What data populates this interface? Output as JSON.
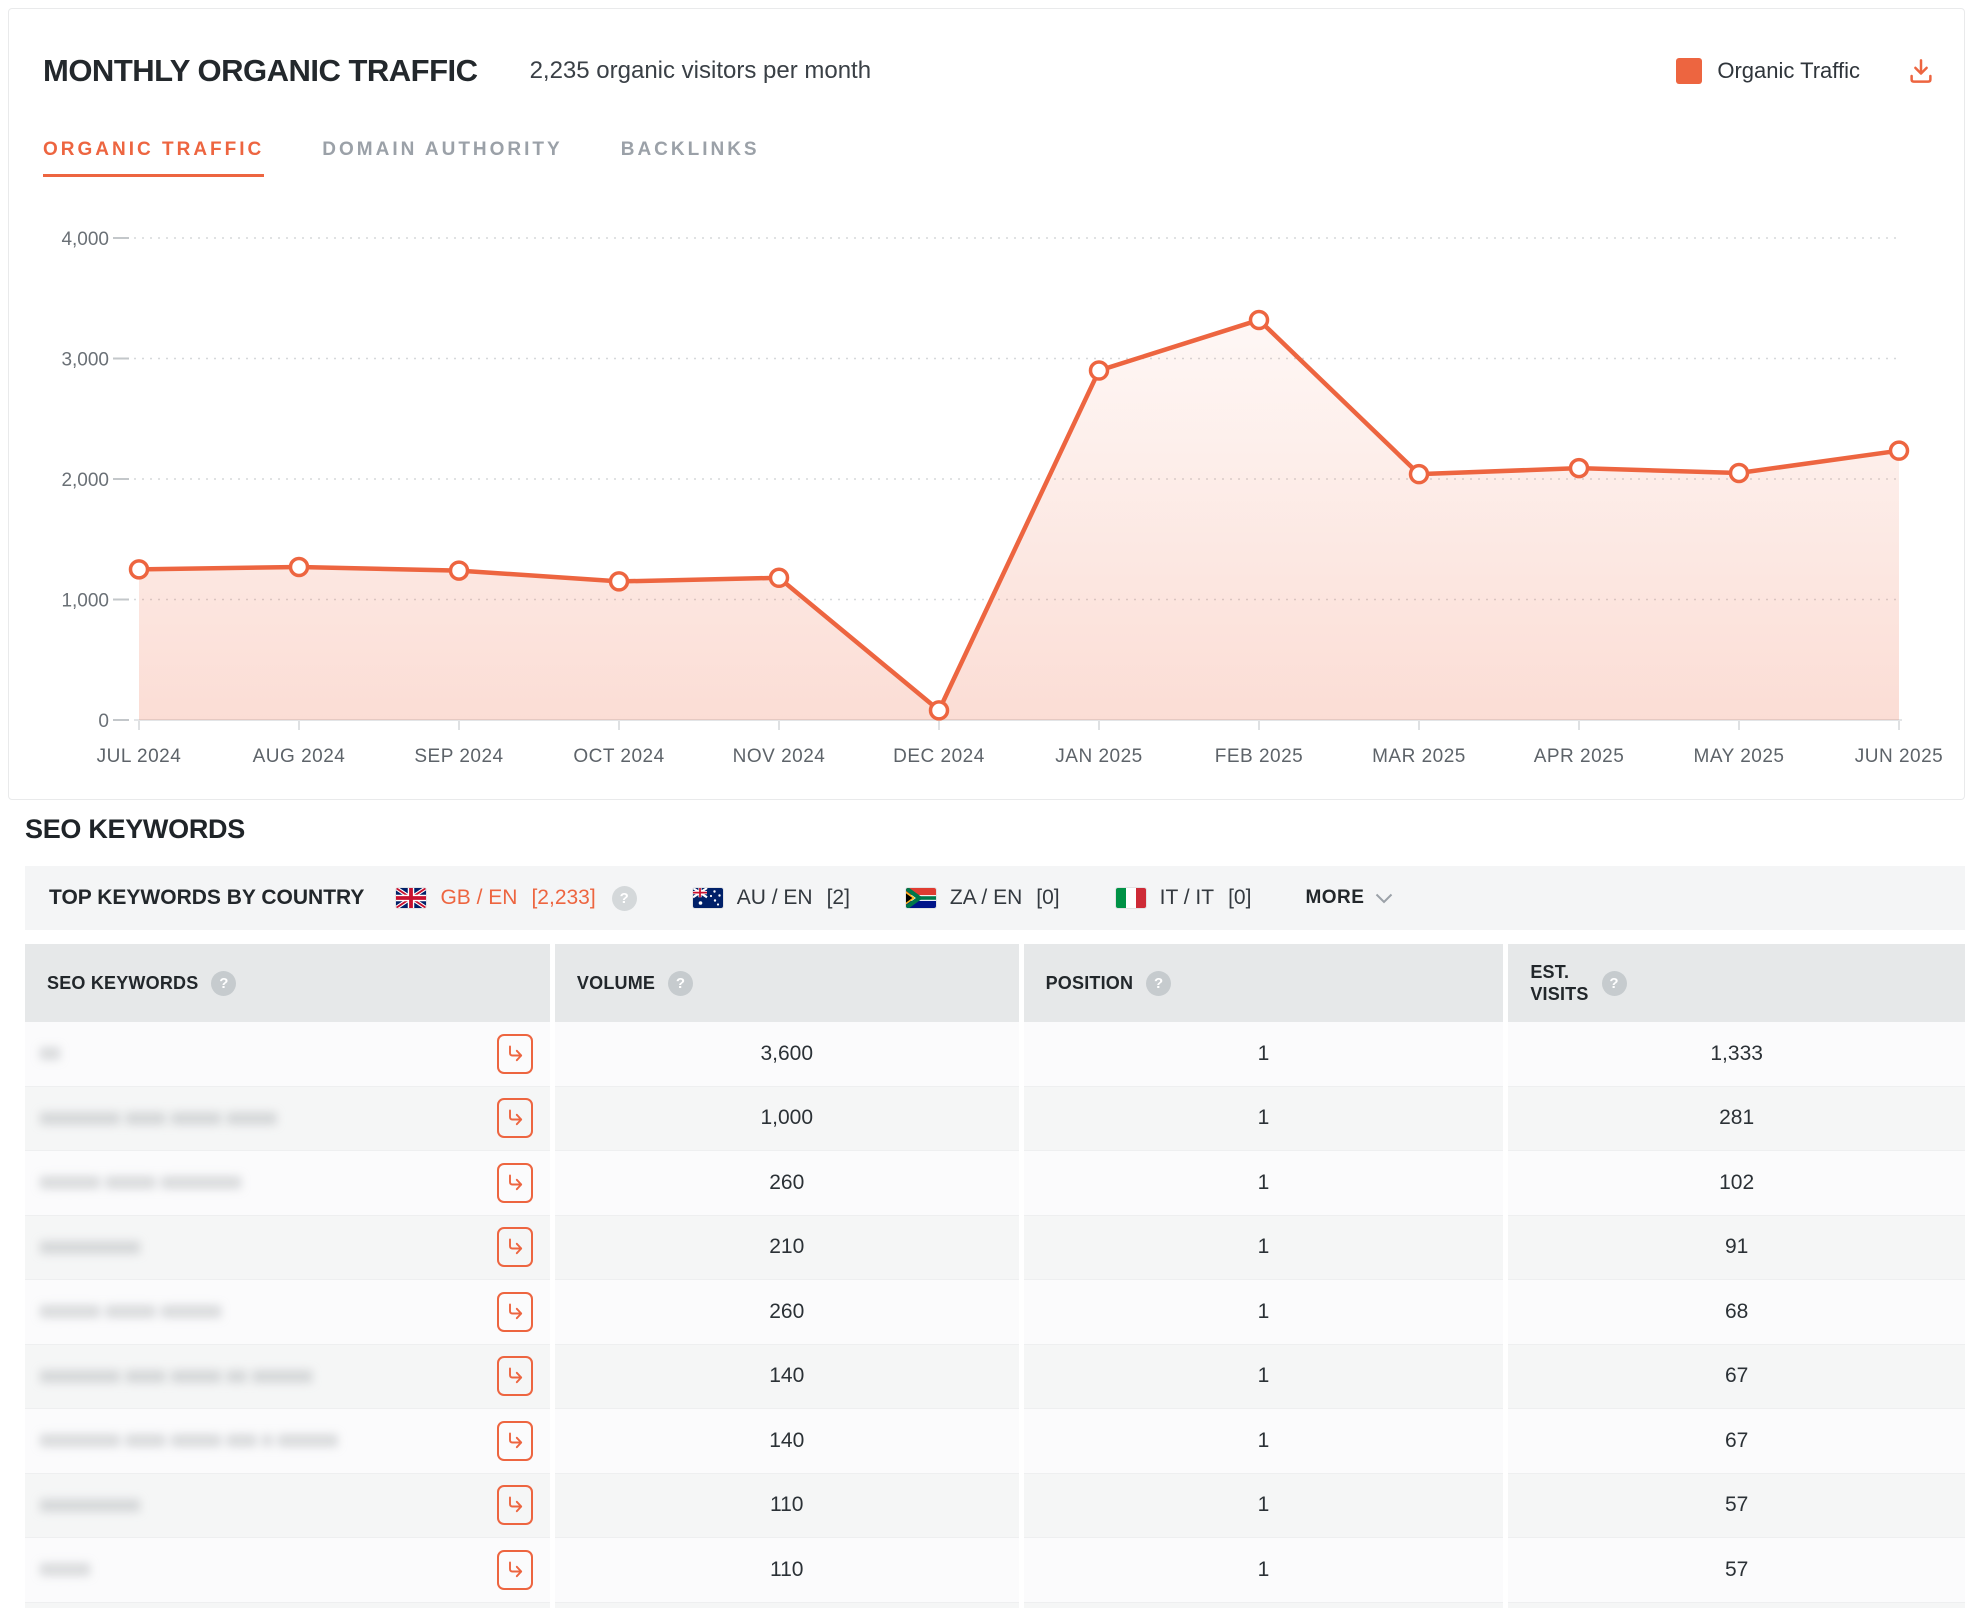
{
  "traffic_card": {
    "title": "MONTHLY ORGANIC TRAFFIC",
    "subtitle": "2,235 organic visitors per month",
    "legend": {
      "label": "Organic Traffic",
      "color": "#ed6540"
    },
    "tabs": [
      {
        "label": "ORGANIC TRAFFIC",
        "active": true
      },
      {
        "label": "DOMAIN AUTHORITY",
        "active": false
      },
      {
        "label": "BACKLINKS",
        "active": false
      }
    ]
  },
  "chart_data": {
    "type": "area",
    "title": "Monthly Organic Traffic",
    "categories": [
      "JUL 2024",
      "AUG 2024",
      "SEP 2024",
      "OCT 2024",
      "NOV 2024",
      "DEC 2024",
      "JAN 2025",
      "FEB 2025",
      "MAR 2025",
      "APR 2025",
      "MAY 2025",
      "JUN 2025"
    ],
    "series": [
      {
        "name": "Organic Traffic",
        "values": [
          1250,
          1270,
          1240,
          1150,
          1180,
          80,
          2900,
          3320,
          2040,
          2090,
          2050,
          2235
        ]
      }
    ],
    "xlabel": "",
    "ylabel": "",
    "ylim": [
      0,
      4000
    ],
    "yticks": [
      0,
      1000,
      2000,
      3000,
      4000
    ],
    "grid": "horizontal-dotted",
    "legend_position": "top-right",
    "line_color": "#ed6540",
    "marker": "hollow-circle"
  },
  "keywords_section": {
    "heading": "SEO KEYWORDS",
    "country_bar": {
      "label": "TOP KEYWORDS BY COUNTRY",
      "tabs": [
        {
          "flag": "gb",
          "label": "GB / EN",
          "count": "[2,233]",
          "selected": true,
          "help": true
        },
        {
          "flag": "au",
          "label": "AU / EN",
          "count": "[2]",
          "selected": false,
          "help": false
        },
        {
          "flag": "za",
          "label": "ZA / EN",
          "count": "[0]",
          "selected": false,
          "help": false
        },
        {
          "flag": "it",
          "label": "IT / IT",
          "count": "[0]",
          "selected": false,
          "help": false
        }
      ],
      "more_label": "MORE"
    },
    "table": {
      "columns": [
        {
          "label": "SEO KEYWORDS",
          "help": true
        },
        {
          "label": "VOLUME",
          "help": true
        },
        {
          "label": "POSITION",
          "help": true
        },
        {
          "label": "EST. VISITS",
          "label_lines": [
            "EST.",
            "VISITS"
          ],
          "help": true
        }
      ],
      "rows": [
        {
          "keyword_redacted": "xx",
          "volume": "3,600",
          "position": "1",
          "est_visits": "1,333"
        },
        {
          "keyword_redacted": "xxxxxxxx xxxx xxxxx xxxxx",
          "volume": "1,000",
          "position": "1",
          "est_visits": "281"
        },
        {
          "keyword_redacted": "xxxxxx xxxxx xxxxxxxx",
          "volume": "260",
          "position": "1",
          "est_visits": "102"
        },
        {
          "keyword_redacted": "xxxxxxxxxx",
          "volume": "210",
          "position": "1",
          "est_visits": "91"
        },
        {
          "keyword_redacted": "xxxxxx xxxxx xxxxxx",
          "volume": "260",
          "position": "1",
          "est_visits": "68"
        },
        {
          "keyword_redacted": "xxxxxxxx xxxx xxxxx xx xxxxxx",
          "volume": "140",
          "position": "1",
          "est_visits": "67"
        },
        {
          "keyword_redacted": "xxxxxxxx xxxx xxxxx xxx x xxxxxx",
          "volume": "140",
          "position": "1",
          "est_visits": "67"
        },
        {
          "keyword_redacted": "xxxxxxxxxx",
          "volume": "110",
          "position": "1",
          "est_visits": "57"
        },
        {
          "keyword_redacted": "xxxxx",
          "volume": "110",
          "position": "1",
          "est_visits": "57"
        }
      ]
    }
  }
}
